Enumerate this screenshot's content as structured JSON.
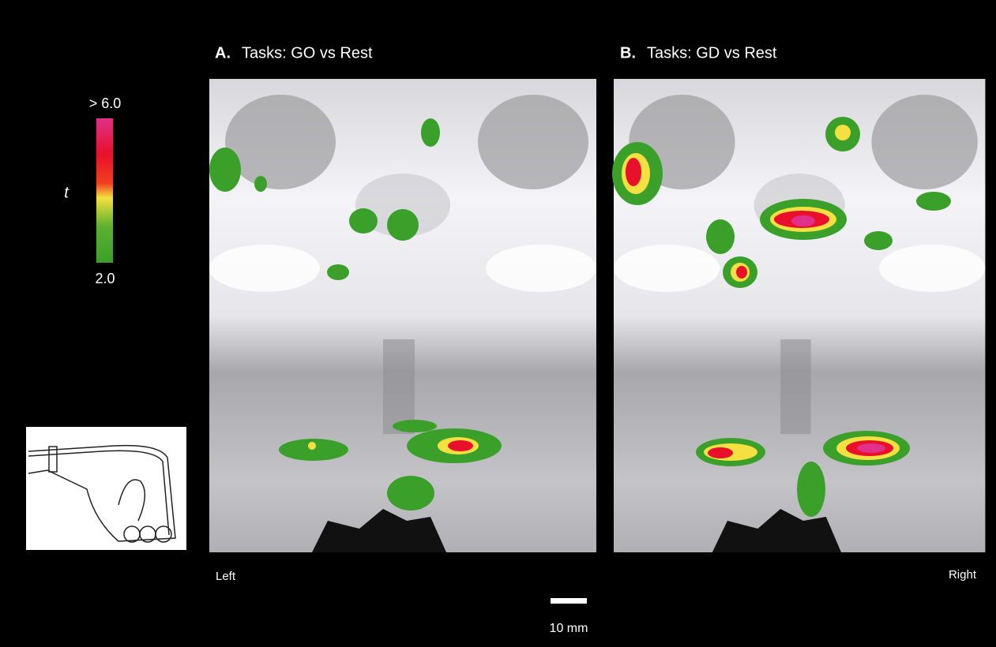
{
  "panels": [
    {
      "letter": "A.",
      "title": "Tasks: GO vs Rest"
    },
    {
      "letter": "B.",
      "title": "Tasks: GD vs Rest"
    }
  ],
  "colorbar": {
    "top_label": "> 6.0",
    "axis_label": "t",
    "bottom_label": "2.0"
  },
  "orientation": {
    "left": "Left",
    "right": "Right"
  },
  "scale_bar": {
    "label": "10 mm"
  }
}
